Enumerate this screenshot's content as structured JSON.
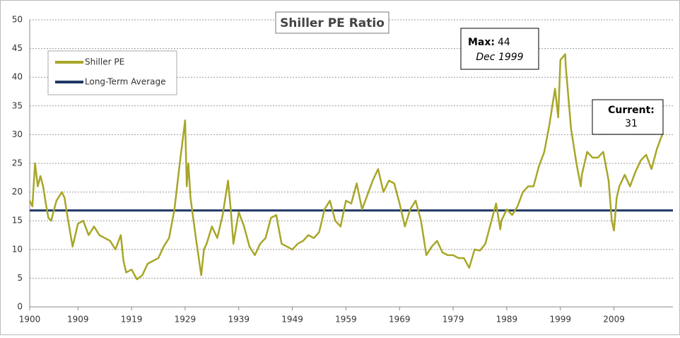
{
  "chart_data": {
    "type": "line",
    "title": "Shiller PE Ratio",
    "x": [
      1900,
      1900.5,
      1901,
      1901.5,
      1902,
      1902.5,
      1903,
      1903.5,
      1904,
      1905,
      1906,
      1906.5,
      1907,
      1908,
      1908.5,
      1909,
      1910,
      1911,
      1912,
      1913,
      1914,
      1915,
      1916,
      1917,
      1917.5,
      1918,
      1919,
      1920,
      1921,
      1922,
      1923,
      1924,
      1925,
      1926,
      1927,
      1928,
      1929,
      1929.3,
      1929.6,
      1930,
      1931,
      1932,
      1932.5,
      1933,
      1934,
      1935,
      1936,
      1937,
      1937.5,
      1938,
      1939,
      1940,
      1941,
      1942,
      1943,
      1944,
      1945,
      1946,
      1947,
      1948,
      1949,
      1950,
      1951,
      1952,
      1953,
      1954,
      1955,
      1956,
      1957,
      1958,
      1959,
      1960,
      1961,
      1962,
      1963,
      1964,
      1965,
      1966,
      1967,
      1968,
      1969,
      1970,
      1971,
      1972,
      1973,
      1974,
      1975,
      1976,
      1977,
      1978,
      1979,
      1980,
      1981,
      1982,
      1983,
      1984,
      1985,
      1986,
      1987,
      1987.8,
      1988,
      1989,
      1990,
      1991,
      1992,
      1993,
      1994,
      1995,
      1996,
      1997,
      1998,
      1998.6,
      1999,
      1999.9,
      2000,
      2001,
      2002,
      2002.8,
      2003,
      2004,
      2005,
      2006,
      2007,
      2008,
      2008.6,
      2009,
      2009.5,
      2010,
      2011,
      2012,
      2013,
      2014,
      2015,
      2016,
      2017,
      2018
    ],
    "series": [
      {
        "name": "Shiller PE",
        "color": "#a8a628",
        "values": [
          18.5,
          17.5,
          25,
          21,
          22.8,
          21,
          18,
          15.5,
          15,
          18.5,
          20,
          19,
          16,
          10.5,
          12.5,
          14.5,
          15,
          12.5,
          14,
          12.5,
          12,
          11.5,
          10,
          12.5,
          8,
          6,
          6.5,
          4.8,
          5.5,
          7.5,
          8,
          8.5,
          10.5,
          12,
          17,
          25,
          32.5,
          21,
          25,
          19,
          12,
          5.5,
          10,
          11,
          14,
          12,
          16,
          22,
          17,
          11,
          16.5,
          14,
          10.5,
          9,
          11,
          12,
          15.5,
          16,
          11,
          10.5,
          10,
          11,
          11.5,
          12.5,
          12,
          13,
          17,
          18.5,
          15,
          14,
          18.5,
          18,
          21.5,
          17,
          19.5,
          22,
          24,
          20,
          22,
          21.5,
          18,
          14,
          17,
          18.5,
          15,
          9,
          10.5,
          11.5,
          9.5,
          9,
          9,
          8.5,
          8.5,
          6.8,
          10,
          9.8,
          11,
          14.5,
          18,
          13.5,
          15,
          17,
          16,
          17.5,
          20,
          21,
          21,
          24.5,
          27,
          32,
          38,
          33,
          43,
          44,
          42,
          31,
          25,
          21,
          23,
          27,
          26,
          26,
          27,
          22,
          15,
          13.3,
          19,
          21,
          23,
          21,
          23.5,
          25.5,
          26.5,
          24,
          27.5,
          30
        ]
      }
    ],
    "reference_line": {
      "name": "Long-Term Average",
      "value": 16.8,
      "color": "#1f3864"
    },
    "annotations": [
      {
        "label": "Max:",
        "value": 44,
        "date": "Dec 1999"
      },
      {
        "label": "Current:",
        "value": 31
      }
    ],
    "xlim": [
      1900,
      2020
    ],
    "xticks": [
      1900,
      1909,
      1919,
      1929,
      1939,
      1949,
      1959,
      1969,
      1979,
      1989,
      1999,
      2009
    ],
    "ylim": [
      0,
      50
    ],
    "yticks": [
      0,
      5,
      10,
      15,
      20,
      25,
      30,
      35,
      40,
      45,
      50
    ],
    "grid": true
  }
}
